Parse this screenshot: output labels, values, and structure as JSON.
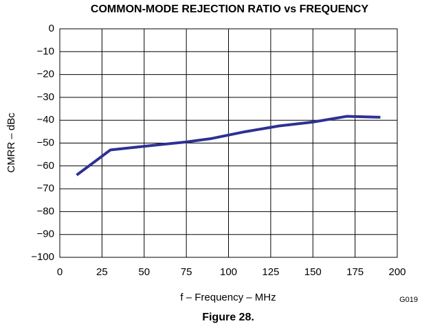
{
  "chart_data": {
    "type": "line",
    "title": "COMMON-MODE REJECTION RATIO vs FREQUENCY",
    "x_label": "f – Frequency – MHz",
    "y_label": "CMRR – dBc",
    "annotation": "G019",
    "caption": "Figure 28.",
    "x": [
      10,
      30,
      55,
      75,
      90,
      110,
      130,
      150,
      170,
      190
    ],
    "series": [
      {
        "color": "#2e3192",
        "values": [
          -64,
          -53,
          -51,
          -49.5,
          -48,
          -45,
          -42.5,
          -40.8,
          -38.3,
          -38.7
        ]
      }
    ],
    "xlim": [
      0,
      200
    ],
    "xticks": [
      0,
      25,
      50,
      75,
      100,
      125,
      150,
      175,
      200
    ],
    "ylim": [
      -100,
      0
    ],
    "yticks": [
      0,
      {
        "value": -10,
        "label": "−10"
      },
      {
        "value": -20,
        "label": "−20"
      },
      {
        "value": -30,
        "label": "−30"
      },
      {
        "value": -40,
        "label": "−40"
      },
      {
        "value": -50,
        "label": "−50"
      },
      {
        "value": -60,
        "label": "−60"
      },
      {
        "value": -70,
        "label": "−70"
      },
      {
        "value": -80,
        "label": "−80"
      },
      {
        "value": -90,
        "label": "−90"
      },
      {
        "value": -100,
        "label": "−100"
      }
    ],
    "grid": true
  }
}
